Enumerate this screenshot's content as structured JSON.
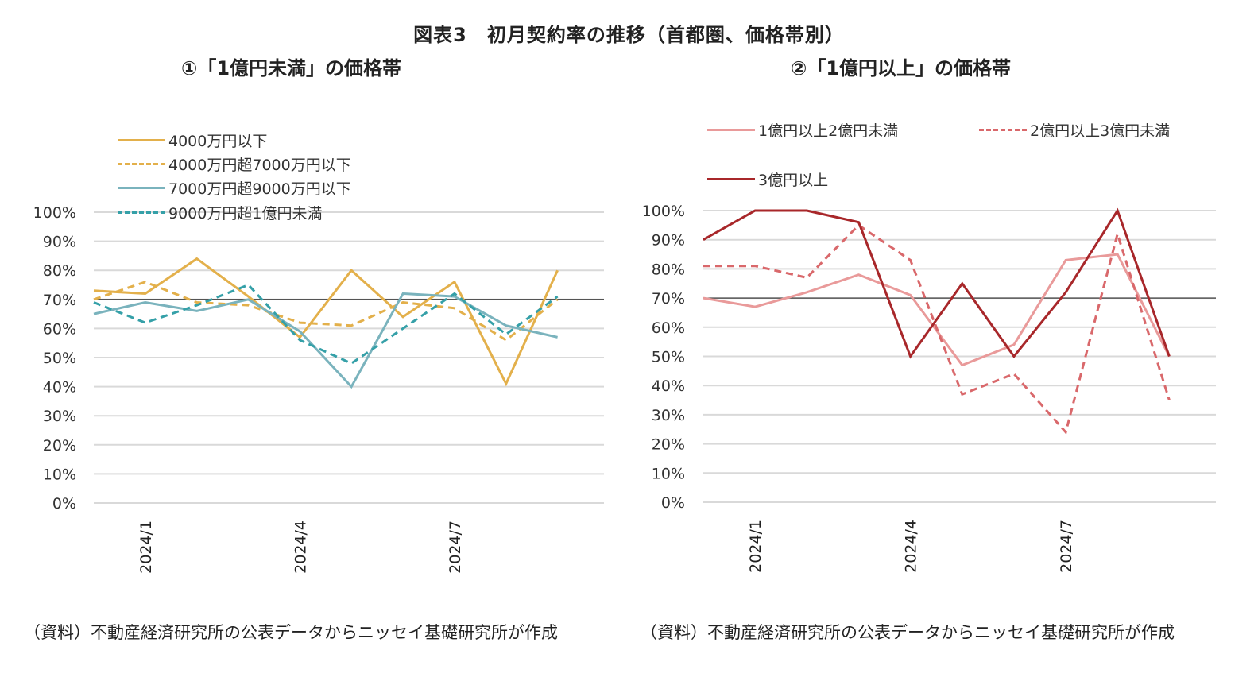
{
  "figure": {
    "title": "図表3　初月契約率の推移（首都圏、価格帯別）",
    "source_left": "（資料）不動産経済研究所の公表データからニッセイ基礎研究所が作成",
    "source_right": "（資料）不動産経済研究所の公表データからニッセイ基礎研究所が作成"
  },
  "chart_data": [
    {
      "type": "line",
      "title": "①「1億円未満」の価格帯",
      "xlabel": "",
      "ylabel": "",
      "x": [
        "2023/12",
        "2024/1",
        "2024/2",
        "2024/3",
        "2024/4",
        "2024/5",
        "2024/6",
        "2024/7",
        "2024/8",
        "2024/9"
      ],
      "x_tick_labels": [
        "2024/1",
        "2024/4",
        "2024/7"
      ],
      "y_tick_labels": [
        "0%",
        "10%",
        "20%",
        "30%",
        "40%",
        "50%",
        "60%",
        "70%",
        "80%",
        "90%",
        "100%"
      ],
      "ylim": [
        0,
        100
      ],
      "reference_line": 70,
      "grid": true,
      "legend_position": "top-left",
      "series": [
        {
          "name": "4000万円以下",
          "color": "#e3b04b",
          "dash": false,
          "values": [
            73,
            72,
            84,
            71,
            57,
            80,
            64,
            76,
            41,
            80
          ]
        },
        {
          "name": "4000万円超7000万円以下",
          "color": "#e3b04b",
          "dash": true,
          "values": [
            70,
            76,
            69,
            68,
            62,
            61,
            69,
            67,
            56,
            70
          ]
        },
        {
          "name": "7000万円超9000万円以下",
          "color": "#7ab3bd",
          "dash": false,
          "values": [
            65,
            69,
            66,
            70,
            59,
            40,
            72,
            71,
            61,
            57
          ]
        },
        {
          "name": "9000万円超1億円未満",
          "color": "#35a0a8",
          "dash": true,
          "values": [
            69,
            62,
            68,
            75,
            56,
            48,
            60,
            72,
            58,
            71
          ]
        }
      ]
    },
    {
      "type": "line",
      "title": "②「1億円以上」の価格帯",
      "xlabel": "",
      "ylabel": "",
      "x": [
        "2023/12",
        "2024/1",
        "2024/2",
        "2024/3",
        "2024/4",
        "2024/5",
        "2024/6",
        "2024/7",
        "2024/8",
        "2024/9"
      ],
      "x_tick_labels": [
        "2024/1",
        "2024/4",
        "2024/7"
      ],
      "y_tick_labels": [
        "0%",
        "10%",
        "20%",
        "30%",
        "40%",
        "50%",
        "60%",
        "70%",
        "80%",
        "90%",
        "100%"
      ],
      "ylim": [
        0,
        100
      ],
      "reference_line": 70,
      "grid": true,
      "legend_position": "top",
      "series": [
        {
          "name": "1億円以上2億円未満",
          "color": "#e99a9a",
          "dash": false,
          "values": [
            70,
            67,
            72,
            78,
            71,
            47,
            54,
            83,
            85,
            50
          ]
        },
        {
          "name": "2億円以上3億円未満",
          "color": "#d9686b",
          "dash": true,
          "values": [
            81,
            81,
            77,
            95,
            83,
            37,
            44,
            24,
            92,
            35
          ]
        },
        {
          "name": "3億円以上",
          "color": "#a8272a",
          "dash": false,
          "values": [
            90,
            100,
            100,
            96,
            50,
            75,
            50,
            72,
            100,
            50
          ]
        }
      ]
    }
  ]
}
